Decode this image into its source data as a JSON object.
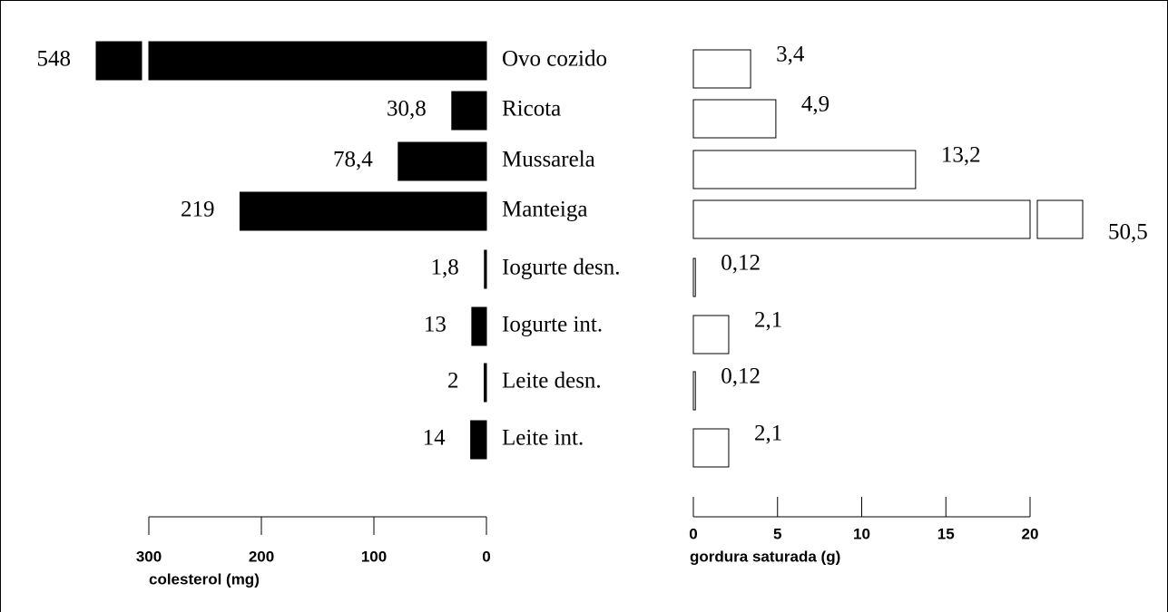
{
  "chart_data": {
    "type": "bar",
    "categories": [
      "Ovo cozido",
      "Ricota",
      "Mussarela",
      "Manteiga",
      "Iogurte desn.",
      "Iogurte int.",
      "Leite desn.",
      "Leite int."
    ],
    "series": [
      {
        "color": "#000000",
        "values": [
          548,
          30.8,
          78.4,
          219,
          1.8,
          13,
          2,
          14
        ],
        "value_labels": [
          "548",
          "30,8",
          "78,4",
          "219",
          "1,8",
          "13",
          "2",
          "14"
        ],
        "xlabel": "colesterol (mg)",
        "xlim": [
          0,
          300
        ],
        "xticks": [
          0,
          100,
          200,
          300
        ]
      },
      {
        "color": "#ffffff",
        "values": [
          3.4,
          4.9,
          13.2,
          50.5,
          0.12,
          2.1,
          0.12,
          2.1
        ],
        "value_labels": [
          "3,4",
          "4,9",
          "13,2",
          "50,5",
          "0,12",
          "2,1",
          "0,12",
          "2,1"
        ],
        "xlabel": "gordura saturada (g)",
        "xlim": [
          0,
          20
        ],
        "xticks": [
          0,
          5,
          10,
          15,
          20
        ]
      }
    ]
  }
}
